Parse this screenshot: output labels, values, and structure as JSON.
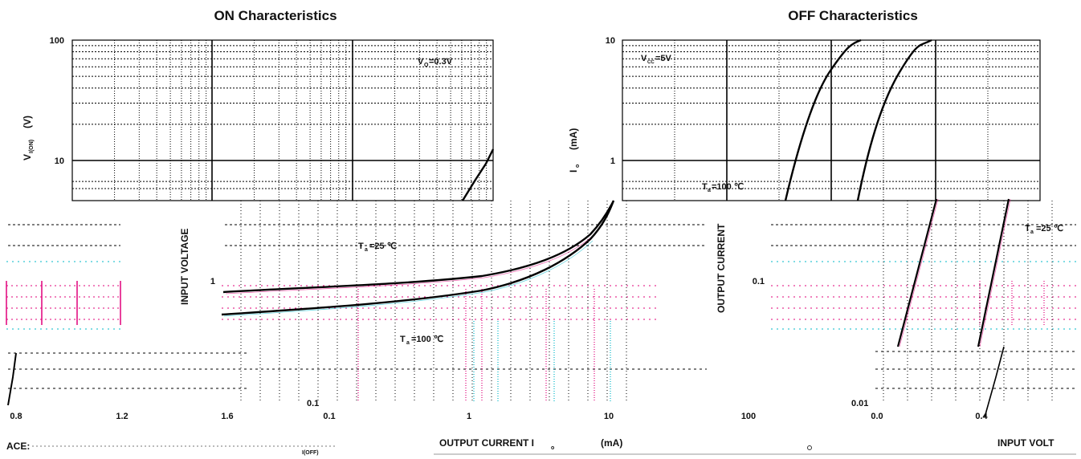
{
  "chart_data": [
    {
      "type": "line",
      "title": "ON Characteristics",
      "xlabel": "OUTPUT CURRENT    I",
      "xlabel_sub": "o",
      "xlabel_unit": "(mA)",
      "ylabel": "INPUT VOLTAGE",
      "ylabel_symbol": "V",
      "ylabel_sub": "I(ON)",
      "ylabel_unit": "(V)",
      "x_scale": "log",
      "y_scale": "log",
      "xlim": [
        0.1,
        100
      ],
      "ylim": [
        0.1,
        100
      ],
      "x_ticks": [
        "0.1",
        "1",
        "10",
        "100"
      ],
      "y_ticks": [
        "100",
        "10",
        "1",
        "0.1"
      ],
      "grid": true,
      "annotations": [
        {
          "text": "V",
          "sub": "O",
          "rest": "=0.3V"
        },
        {
          "text": "T",
          "sub": "a",
          "rest": "=25 ℃"
        },
        {
          "text": "T",
          "sub": "a",
          "rest": "=100 ℃"
        }
      ],
      "series": [
        {
          "x": [
            0.1,
            0.3,
            1,
            3,
            6,
            10,
            12,
            20,
            30
          ],
          "y": [
            0.92,
            0.96,
            1.0,
            1.15,
            1.6,
            2.3,
            2.7,
            5.0,
            12.0
          ]
        },
        {
          "x": [
            0.1,
            0.3,
            1,
            3,
            6,
            10,
            12
          ],
          "y": [
            0.72,
            0.77,
            0.83,
            0.98,
            1.35,
            2.1,
            2.6
          ]
        }
      ]
    },
    {
      "type": "line",
      "title": "OFF Characteristics",
      "xlabel": "INPUT VOLT",
      "ylabel": "OUTPUT CURRENT",
      "ylabel_symbol": "I",
      "ylabel_sub": "o",
      "ylabel_unit": "(mA)",
      "y_scale": "log",
      "ylim": [
        0.01,
        10
      ],
      "xlim": [
        0.0,
        1.6
      ],
      "x_ticks": [
        "0.0",
        "0.4"
      ],
      "y_ticks": [
        "10",
        "1",
        "0.1",
        "0.01"
      ],
      "grid": true,
      "annotations": [
        {
          "text": "V",
          "sub": "CC",
          "rest": "=5V"
        },
        {
          "text": "T",
          "sub": "a",
          "rest": "=100 ℃"
        },
        {
          "text": "T",
          "sub": "a",
          "rest": "=25 ℃"
        }
      ],
      "series": [
        {
          "x": [
            0.3,
            0.55,
            0.75,
            1.0
          ],
          "y": [
            0.02,
            0.3,
            3.0,
            10.0
          ]
        },
        {
          "x": [
            0.7,
            0.95,
            1.15,
            1.3
          ],
          "y": [
            0.02,
            0.35,
            3.5,
            10.0
          ]
        }
      ]
    }
  ],
  "fragments": {
    "bottom_left_ticks": [
      "0.8",
      "1.2",
      "1.6"
    ],
    "bottom_left_label": "ACE:",
    "off_sub": "I(OFF)"
  }
}
